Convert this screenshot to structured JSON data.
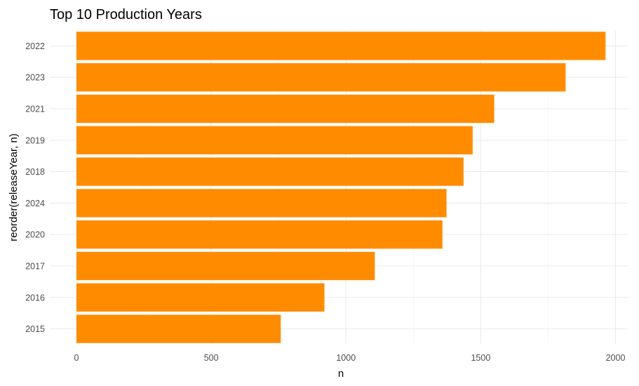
{
  "chart_data": {
    "type": "bar",
    "orientation": "horizontal",
    "title": "Top 10 Production Years",
    "xlabel": "n",
    "ylabel": "reorder(releaseYear, n)",
    "categories": [
      "2022",
      "2023",
      "2021",
      "2019",
      "2018",
      "2024",
      "2020",
      "2017",
      "2016",
      "2015"
    ],
    "values": [
      1963,
      1815,
      1550,
      1470,
      1436,
      1373,
      1358,
      1107,
      920,
      758
    ],
    "xlim": [
      0,
      2000
    ],
    "xticks": [
      0,
      500,
      1000,
      1500,
      2000
    ],
    "grid": true,
    "legend": "none",
    "bar_color": "#FF8C00"
  }
}
